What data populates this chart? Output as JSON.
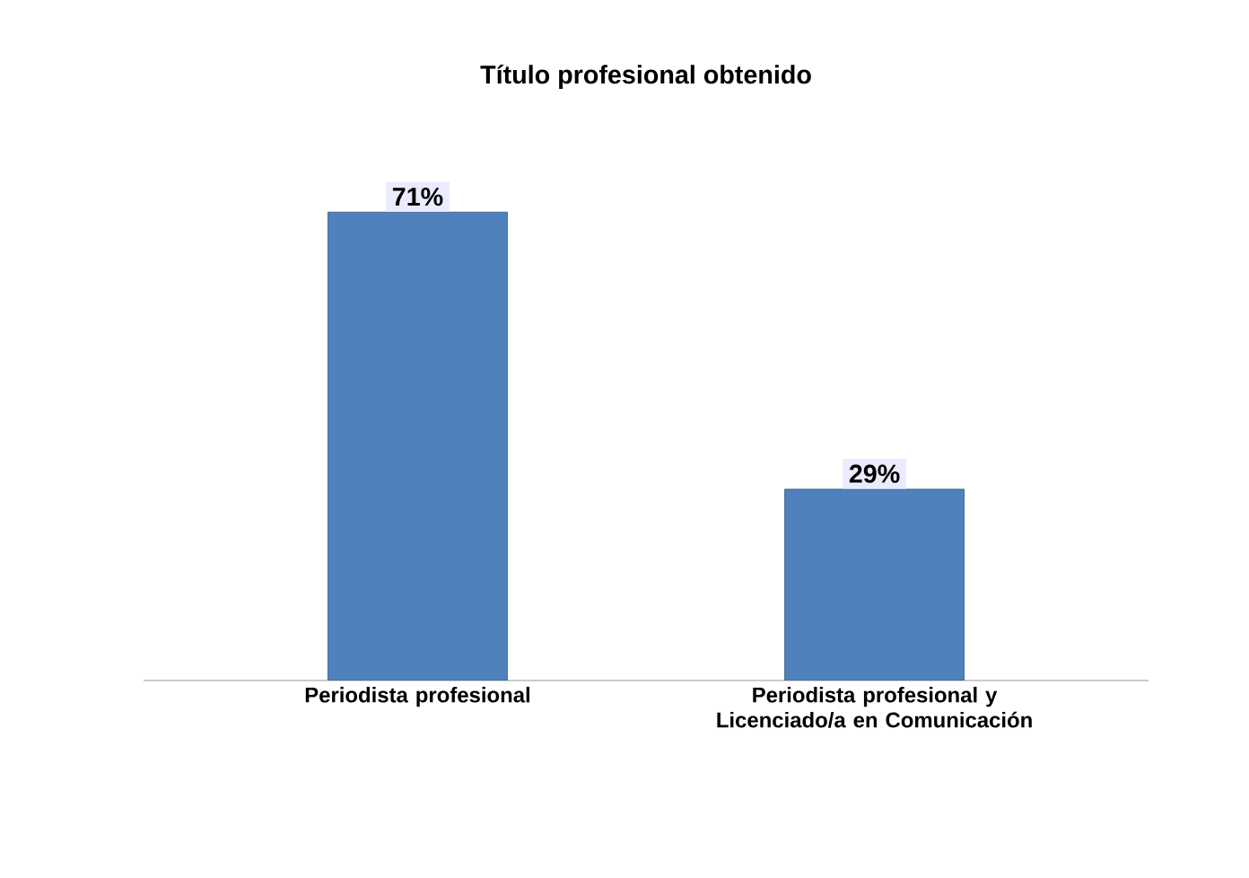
{
  "chart_data": {
    "type": "bar",
    "title": "Título profesional obtenido",
    "categories": [
      "Periodista profesional",
      "Periodista profesional y Licenciado/a en Comunicación"
    ],
    "values": [
      71,
      29
    ],
    "value_labels": [
      "71%",
      "29%"
    ],
    "color": "#4f81bd"
  }
}
